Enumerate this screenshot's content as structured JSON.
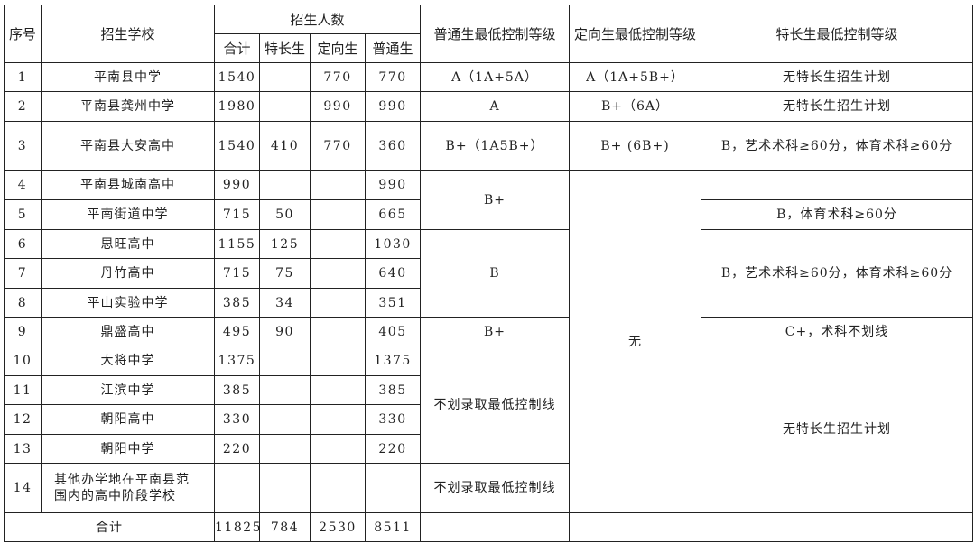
{
  "headers": {
    "index": "序号",
    "school": "招生学校",
    "enrollment": "招生人数",
    "total": "合计",
    "special": "特长生",
    "directed": "定向生",
    "regular": "普通生",
    "regular_min": "普通生最低控制等级",
    "directed_min": "定向生最低控制等级",
    "special_min": "特长生最低控制等级"
  },
  "rows": [
    {
      "no": "1",
      "school": "平南县中学",
      "total": "1540",
      "special": "",
      "directed": "770",
      "regular": "770"
    },
    {
      "no": "2",
      "school": "平南县龚州中学",
      "total": "1980",
      "special": "",
      "directed": "990",
      "regular": "990"
    },
    {
      "no": "3",
      "school": "平南县大安高中",
      "total": "1540",
      "special": "410",
      "directed": "770",
      "regular": "360"
    },
    {
      "no": "4",
      "school": "平南县城南高中",
      "total": "990",
      "special": "",
      "directed": "",
      "regular": "990"
    },
    {
      "no": "5",
      "school": "平南街道中学",
      "total": "715",
      "special": "50",
      "directed": "",
      "regular": "665"
    },
    {
      "no": "6",
      "school": "思旺高中",
      "total": "1155",
      "special": "125",
      "directed": "",
      "regular": "1030"
    },
    {
      "no": "7",
      "school": "丹竹高中",
      "total": "715",
      "special": "75",
      "directed": "",
      "regular": "640"
    },
    {
      "no": "8",
      "school": "平山实验中学",
      "total": "385",
      "special": "34",
      "directed": "",
      "regular": "351"
    },
    {
      "no": "9",
      "school": "鼎盛高中",
      "total": "495",
      "special": "90",
      "directed": "",
      "regular": "405"
    },
    {
      "no": "10",
      "school": "大将中学",
      "total": "1375",
      "special": "",
      "directed": "",
      "regular": "1375"
    },
    {
      "no": "11",
      "school": "江滨中学",
      "total": "385",
      "special": "",
      "directed": "",
      "regular": "385"
    },
    {
      "no": "12",
      "school": "朝阳高中",
      "total": "330",
      "special": "",
      "directed": "",
      "regular": "330"
    },
    {
      "no": "13",
      "school": "朝阳中学",
      "total": "220",
      "special": "",
      "directed": "",
      "regular": "220"
    },
    {
      "no": "14",
      "school": "其他办学地在平南县范围内的高中阶段学校",
      "total": "",
      "special": "",
      "directed": "",
      "regular": ""
    }
  ],
  "grades": {
    "r1_regular": "A（1A+5A）",
    "r1_directed": "A（1A+5B+）",
    "r1_special": "无特长生招生计划",
    "r2_regular": "A",
    "r2_directed": "B+（6A）",
    "r2_special": "无特长生招生计划",
    "r3_regular": "B+（1A5B+）",
    "r3_directed": "B+ (6B+)",
    "r3_special": "B，艺术术科≥60分，体育术科≥60分",
    "r4_5_regular": "B+",
    "r4_14_directed": "无",
    "r4_special": "",
    "r5_special": "B，体育术科≥60分",
    "r6_8_regular": "B",
    "r6_8_special": "B，艺术术科≥60分，体育术科≥60分",
    "r9_regular": "B+",
    "r9_special": "C+，术科不划线",
    "r10_13_regular": "不划录取最低控制线",
    "r10_14_special": "无特长生招生计划",
    "r14_regular": "不划录取最低控制线"
  },
  "totals": {
    "label": "合计",
    "total": "11825",
    "special": "784",
    "directed": "2530",
    "regular": "8511"
  }
}
